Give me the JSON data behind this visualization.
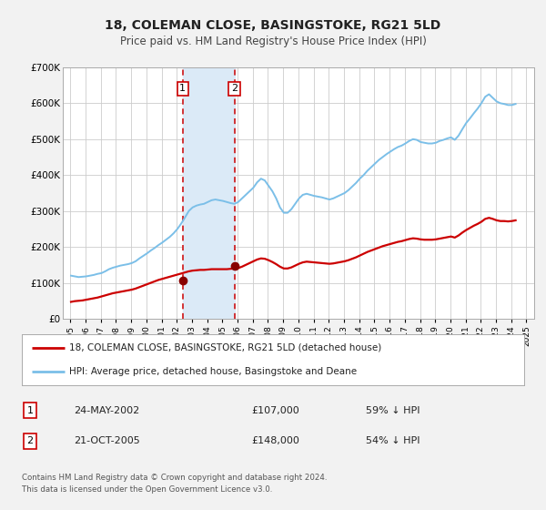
{
  "title": "18, COLEMAN CLOSE, BASINGSTOKE, RG21 5LD",
  "subtitle": "Price paid vs. HM Land Registry's House Price Index (HPI)",
  "legend_line1": "18, COLEMAN CLOSE, BASINGSTOKE, RG21 5LD (detached house)",
  "legend_line2": "HPI: Average price, detached house, Basingstoke and Deane",
  "footer1": "Contains HM Land Registry data © Crown copyright and database right 2024.",
  "footer2": "This data is licensed under the Open Government Licence v3.0.",
  "transaction1_label": "1",
  "transaction1_date": "24-MAY-2002",
  "transaction1_price": "£107,000",
  "transaction1_hpi": "59% ↓ HPI",
  "transaction2_label": "2",
  "transaction2_date": "21-OCT-2005",
  "transaction2_price": "£148,000",
  "transaction2_hpi": "54% ↓ HPI",
  "sale1_x": 2002.39,
  "sale1_y": 107000,
  "sale2_x": 2005.8,
  "sale2_y": 148000,
  "vline1_x": 2002.39,
  "vline2_x": 2005.8,
  "shade_x1": 2002.39,
  "shade_x2": 2005.8,
  "hpi_color": "#7bbfe8",
  "price_color": "#cc0000",
  "dot_color": "#880000",
  "shade_color": "#dbeaf7",
  "vline_color": "#cc0000",
  "background_color": "#f2f2f2",
  "plot_bg_color": "#ffffff",
  "grid_color": "#cccccc",
  "ylim_min": 0,
  "ylim_max": 700000,
  "xlim_min": 1994.5,
  "xlim_max": 2025.5,
  "yticks": [
    0,
    100000,
    200000,
    300000,
    400000,
    500000,
    600000,
    700000
  ],
  "ytick_labels": [
    "£0",
    "£100K",
    "£200K",
    "£300K",
    "£400K",
    "£500K",
    "£600K",
    "£700K"
  ],
  "xticks": [
    1995,
    1996,
    1997,
    1998,
    1999,
    2000,
    2001,
    2002,
    2003,
    2004,
    2005,
    2006,
    2007,
    2008,
    2009,
    2010,
    2011,
    2012,
    2013,
    2014,
    2015,
    2016,
    2017,
    2018,
    2019,
    2020,
    2021,
    2022,
    2023,
    2024,
    2025
  ],
  "hpi_data": [
    [
      1995.04,
      120000
    ],
    [
      1995.29,
      118000
    ],
    [
      1995.54,
      116000
    ],
    [
      1995.79,
      117000
    ],
    [
      1996.04,
      118000
    ],
    [
      1996.29,
      120000
    ],
    [
      1996.54,
      122000
    ],
    [
      1996.79,
      125000
    ],
    [
      1997.04,
      127000
    ],
    [
      1997.29,
      132000
    ],
    [
      1997.54,
      138000
    ],
    [
      1997.79,
      142000
    ],
    [
      1998.04,
      145000
    ],
    [
      1998.29,
      148000
    ],
    [
      1998.54,
      150000
    ],
    [
      1998.79,
      152000
    ],
    [
      1999.04,
      155000
    ],
    [
      1999.29,
      160000
    ],
    [
      1999.54,
      168000
    ],
    [
      1999.79,
      175000
    ],
    [
      2000.04,
      182000
    ],
    [
      2000.29,
      190000
    ],
    [
      2000.54,
      197000
    ],
    [
      2000.79,
      205000
    ],
    [
      2001.04,
      212000
    ],
    [
      2001.29,
      220000
    ],
    [
      2001.54,
      228000
    ],
    [
      2001.79,
      238000
    ],
    [
      2002.04,
      250000
    ],
    [
      2002.29,
      265000
    ],
    [
      2002.54,
      282000
    ],
    [
      2002.79,
      300000
    ],
    [
      2003.04,
      310000
    ],
    [
      2003.29,
      315000
    ],
    [
      2003.54,
      318000
    ],
    [
      2003.79,
      320000
    ],
    [
      2004.04,
      325000
    ],
    [
      2004.29,
      330000
    ],
    [
      2004.54,
      332000
    ],
    [
      2004.79,
      330000
    ],
    [
      2005.04,
      328000
    ],
    [
      2005.29,
      325000
    ],
    [
      2005.54,
      322000
    ],
    [
      2005.79,
      320000
    ],
    [
      2006.04,
      325000
    ],
    [
      2006.29,
      335000
    ],
    [
      2006.54,
      345000
    ],
    [
      2006.79,
      355000
    ],
    [
      2007.04,
      365000
    ],
    [
      2007.29,
      380000
    ],
    [
      2007.54,
      390000
    ],
    [
      2007.79,
      385000
    ],
    [
      2008.04,
      370000
    ],
    [
      2008.29,
      355000
    ],
    [
      2008.54,
      335000
    ],
    [
      2008.79,
      310000
    ],
    [
      2009.04,
      295000
    ],
    [
      2009.29,
      295000
    ],
    [
      2009.54,
      305000
    ],
    [
      2009.79,
      320000
    ],
    [
      2010.04,
      335000
    ],
    [
      2010.29,
      345000
    ],
    [
      2010.54,
      348000
    ],
    [
      2010.79,
      345000
    ],
    [
      2011.04,
      342000
    ],
    [
      2011.29,
      340000
    ],
    [
      2011.54,
      338000
    ],
    [
      2011.79,
      335000
    ],
    [
      2012.04,
      332000
    ],
    [
      2012.29,
      335000
    ],
    [
      2012.54,
      340000
    ],
    [
      2012.79,
      345000
    ],
    [
      2013.04,
      350000
    ],
    [
      2013.29,
      358000
    ],
    [
      2013.54,
      368000
    ],
    [
      2013.79,
      378000
    ],
    [
      2014.04,
      390000
    ],
    [
      2014.29,
      400000
    ],
    [
      2014.54,
      412000
    ],
    [
      2014.79,
      422000
    ],
    [
      2015.04,
      432000
    ],
    [
      2015.29,
      442000
    ],
    [
      2015.54,
      450000
    ],
    [
      2015.79,
      458000
    ],
    [
      2016.04,
      465000
    ],
    [
      2016.29,
      472000
    ],
    [
      2016.54,
      478000
    ],
    [
      2016.79,
      482000
    ],
    [
      2017.04,
      488000
    ],
    [
      2017.29,
      495000
    ],
    [
      2017.54,
      500000
    ],
    [
      2017.79,
      498000
    ],
    [
      2018.04,
      492000
    ],
    [
      2018.29,
      490000
    ],
    [
      2018.54,
      488000
    ],
    [
      2018.79,
      488000
    ],
    [
      2019.04,
      490000
    ],
    [
      2019.29,
      495000
    ],
    [
      2019.54,
      498000
    ],
    [
      2019.79,
      502000
    ],
    [
      2020.04,
      505000
    ],
    [
      2020.29,
      498000
    ],
    [
      2020.54,
      510000
    ],
    [
      2020.79,
      528000
    ],
    [
      2021.04,
      545000
    ],
    [
      2021.29,
      558000
    ],
    [
      2021.54,
      572000
    ],
    [
      2021.79,
      585000
    ],
    [
      2022.04,
      600000
    ],
    [
      2022.29,
      618000
    ],
    [
      2022.54,
      625000
    ],
    [
      2022.79,
      615000
    ],
    [
      2023.04,
      605000
    ],
    [
      2023.29,
      600000
    ],
    [
      2023.54,
      598000
    ],
    [
      2023.79,
      595000
    ],
    [
      2024.04,
      595000
    ],
    [
      2024.29,
      598000
    ]
  ],
  "price_data": [
    [
      1995.04,
      47000
    ],
    [
      1995.29,
      49000
    ],
    [
      1995.54,
      50000
    ],
    [
      1995.79,
      51000
    ],
    [
      1996.04,
      53000
    ],
    [
      1996.29,
      55000
    ],
    [
      1996.54,
      57000
    ],
    [
      1996.79,
      59000
    ],
    [
      1997.04,
      62000
    ],
    [
      1997.29,
      65000
    ],
    [
      1997.54,
      68000
    ],
    [
      1997.79,
      71000
    ],
    [
      1998.04,
      73000
    ],
    [
      1998.29,
      75000
    ],
    [
      1998.54,
      77000
    ],
    [
      1998.79,
      79000
    ],
    [
      1999.04,
      81000
    ],
    [
      1999.29,
      84000
    ],
    [
      1999.54,
      88000
    ],
    [
      1999.79,
      92000
    ],
    [
      2000.04,
      96000
    ],
    [
      2000.29,
      100000
    ],
    [
      2000.54,
      104000
    ],
    [
      2000.79,
      108000
    ],
    [
      2001.04,
      111000
    ],
    [
      2001.29,
      114000
    ],
    [
      2001.54,
      117000
    ],
    [
      2001.79,
      120000
    ],
    [
      2002.04,
      123000
    ],
    [
      2002.29,
      126000
    ],
    [
      2002.54,
      129000
    ],
    [
      2002.79,
      132000
    ],
    [
      2003.04,
      134000
    ],
    [
      2003.29,
      135000
    ],
    [
      2003.54,
      136000
    ],
    [
      2003.79,
      136000
    ],
    [
      2004.04,
      137000
    ],
    [
      2004.29,
      138000
    ],
    [
      2004.54,
      138000
    ],
    [
      2004.79,
      138000
    ],
    [
      2005.04,
      138000
    ],
    [
      2005.29,
      138000
    ],
    [
      2005.54,
      139000
    ],
    [
      2005.79,
      140000
    ],
    [
      2006.04,
      141000
    ],
    [
      2006.29,
      145000
    ],
    [
      2006.54,
      150000
    ],
    [
      2006.79,
      155000
    ],
    [
      2007.04,
      160000
    ],
    [
      2007.29,
      165000
    ],
    [
      2007.54,
      168000
    ],
    [
      2007.79,
      167000
    ],
    [
      2008.04,
      163000
    ],
    [
      2008.29,
      158000
    ],
    [
      2008.54,
      152000
    ],
    [
      2008.79,
      145000
    ],
    [
      2009.04,
      140000
    ],
    [
      2009.29,
      140000
    ],
    [
      2009.54,
      143000
    ],
    [
      2009.79,
      148000
    ],
    [
      2010.04,
      153000
    ],
    [
      2010.29,
      157000
    ],
    [
      2010.54,
      159000
    ],
    [
      2010.79,
      158000
    ],
    [
      2011.04,
      157000
    ],
    [
      2011.29,
      156000
    ],
    [
      2011.54,
      155000
    ],
    [
      2011.79,
      154000
    ],
    [
      2012.04,
      153000
    ],
    [
      2012.29,
      154000
    ],
    [
      2012.54,
      156000
    ],
    [
      2012.79,
      158000
    ],
    [
      2013.04,
      160000
    ],
    [
      2013.29,
      163000
    ],
    [
      2013.54,
      167000
    ],
    [
      2013.79,
      171000
    ],
    [
      2014.04,
      176000
    ],
    [
      2014.29,
      181000
    ],
    [
      2014.54,
      186000
    ],
    [
      2014.79,
      190000
    ],
    [
      2015.04,
      194000
    ],
    [
      2015.29,
      198000
    ],
    [
      2015.54,
      202000
    ],
    [
      2015.79,
      205000
    ],
    [
      2016.04,
      208000
    ],
    [
      2016.29,
      211000
    ],
    [
      2016.54,
      214000
    ],
    [
      2016.79,
      216000
    ],
    [
      2017.04,
      219000
    ],
    [
      2017.29,
      222000
    ],
    [
      2017.54,
      224000
    ],
    [
      2017.79,
      223000
    ],
    [
      2018.04,
      221000
    ],
    [
      2018.29,
      220000
    ],
    [
      2018.54,
      220000
    ],
    [
      2018.79,
      220000
    ],
    [
      2019.04,
      221000
    ],
    [
      2019.29,
      223000
    ],
    [
      2019.54,
      225000
    ],
    [
      2019.79,
      227000
    ],
    [
      2020.04,
      229000
    ],
    [
      2020.29,
      226000
    ],
    [
      2020.54,
      232000
    ],
    [
      2020.79,
      240000
    ],
    [
      2021.04,
      247000
    ],
    [
      2021.29,
      253000
    ],
    [
      2021.54,
      259000
    ],
    [
      2021.79,
      264000
    ],
    [
      2022.04,
      270000
    ],
    [
      2022.29,
      278000
    ],
    [
      2022.54,
      281000
    ],
    [
      2022.79,
      278000
    ],
    [
      2023.04,
      274000
    ],
    [
      2023.29,
      272000
    ],
    [
      2023.54,
      272000
    ],
    [
      2023.79,
      271000
    ],
    [
      2024.04,
      272000
    ],
    [
      2024.29,
      274000
    ]
  ]
}
